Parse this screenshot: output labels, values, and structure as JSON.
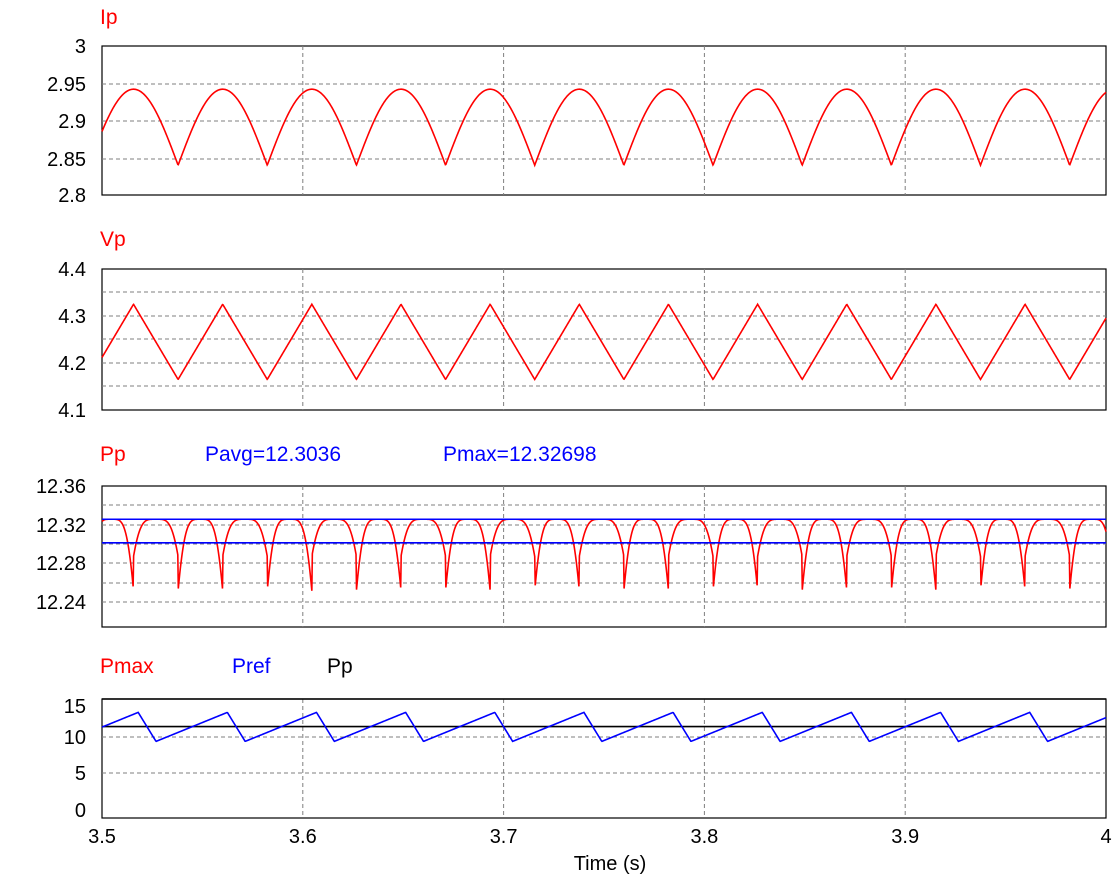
{
  "chart_data": [
    {
      "type": "line",
      "labels": [
        {
          "text": "Ip",
          "color": "#ff0000"
        }
      ],
      "ylim": [
        2.8,
        3.0
      ],
      "yticks": [
        "3",
        "2.95",
        "2.9",
        "2.85",
        "2.8"
      ],
      "xlim": [
        3.5,
        4.0
      ],
      "series": [
        {
          "name": "Ip",
          "color": "#ff0000",
          "shape": "arch",
          "period": 0.0444,
          "phase": 3.4935,
          "min": 2.84,
          "max": 2.942
        }
      ]
    },
    {
      "type": "line",
      "labels": [
        {
          "text": "Vp",
          "color": "#ff0000"
        }
      ],
      "ylim": [
        4.1,
        4.4
      ],
      "yticks": [
        "4.4",
        "4.3",
        "4.2",
        "4.1"
      ],
      "xlim": [
        3.5,
        4.0
      ],
      "series": [
        {
          "name": "Vp",
          "color": "#ff0000",
          "shape": "triangle",
          "period": 0.0444,
          "phase": 3.4935,
          "min": 4.165,
          "max": 4.325
        }
      ]
    },
    {
      "type": "line",
      "labels": [
        {
          "text": "Pp",
          "color": "#ff0000"
        },
        {
          "text": "Pavg=12.3036",
          "color": "#0000ff"
        },
        {
          "text": "Pmax=12.32698",
          "color": "#0000ff"
        }
      ],
      "ylim": [
        12.22,
        12.36
      ],
      "yticks": [
        "12.36",
        "12.32",
        "12.28",
        "12.24"
      ],
      "xlim": [
        3.5,
        4.0
      ],
      "series": [
        {
          "name": "Pp",
          "color": "#ff0000",
          "shape": "power",
          "period": 0.0444,
          "phase": 3.4935,
          "min": 12.256,
          "max": 12.327,
          "secondary_min": 12.29
        },
        {
          "name": "Pmax",
          "color": "#0000ff",
          "shape": "const",
          "value": 12.32698
        },
        {
          "name": "Pavg",
          "color": "#0000ff",
          "shape": "const",
          "value": 12.3036
        }
      ]
    },
    {
      "type": "line",
      "labels": [
        {
          "text": "Pmax",
          "color": "#ff0000"
        },
        {
          "text": "Pref",
          "color": "#0000ff"
        },
        {
          "text": "Pp",
          "color": "#000000"
        }
      ],
      "ylim": [
        0,
        16
      ],
      "yticks": [
        "15",
        "10",
        "5",
        "0"
      ],
      "xlim": [
        3.5,
        4.0
      ],
      "xticks": [
        "3.5",
        "3.6",
        "3.7",
        "3.8",
        "3.9",
        "4"
      ],
      "xlabel": "Time (s)",
      "series": [
        {
          "name": "Pmax",
          "color": "#000000",
          "shape": "const",
          "value": 16
        },
        {
          "name": "Pp",
          "color": "#000000",
          "shape": "const",
          "value": 12.3
        },
        {
          "name": "Pref",
          "color": "#0000ff",
          "shape": "sawtooth",
          "period": 0.0444,
          "phase": 3.4825,
          "min": 10.3,
          "max": 14.2
        }
      ]
    }
  ]
}
